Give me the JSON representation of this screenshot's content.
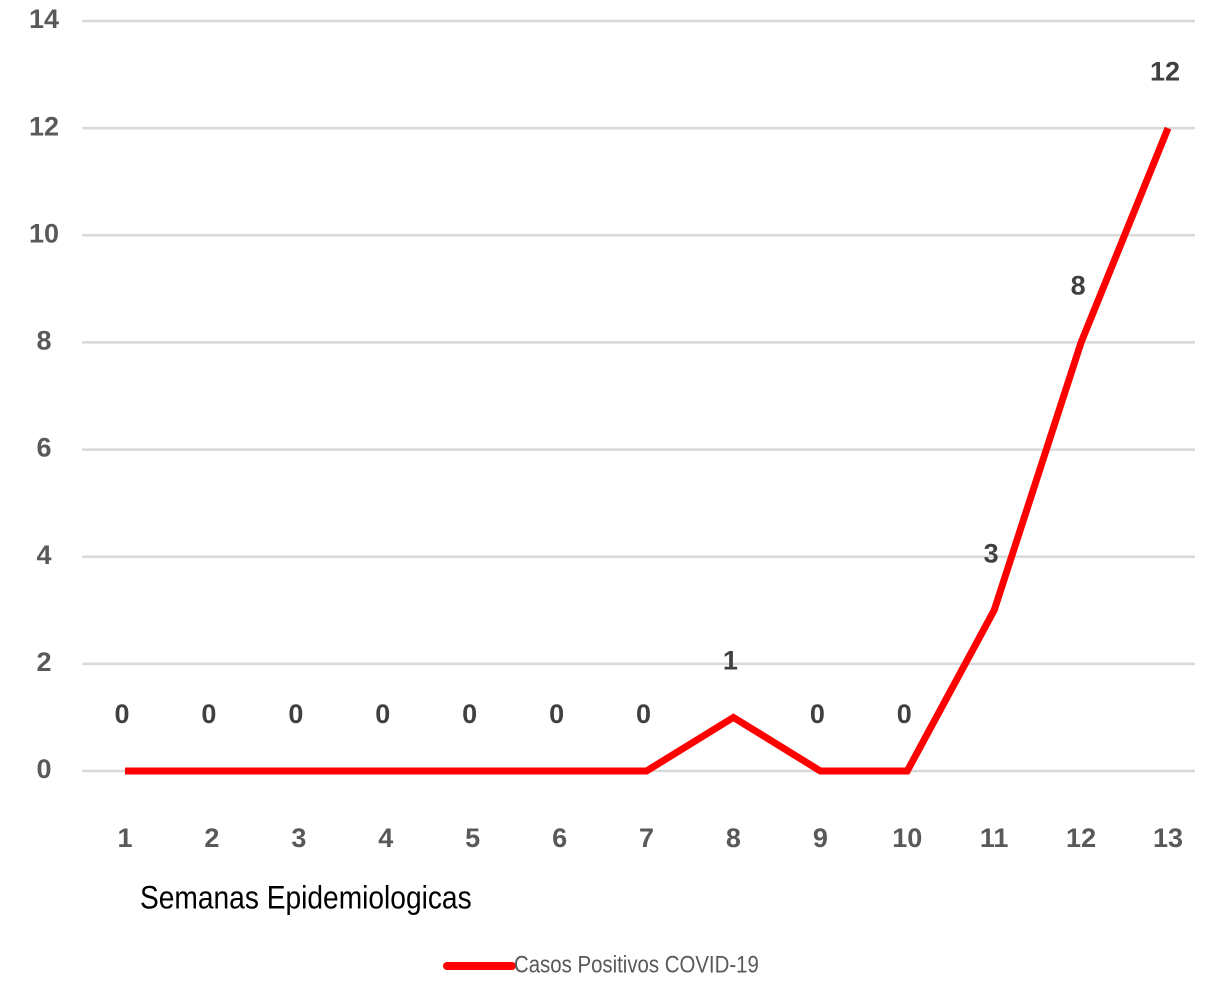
{
  "chart_data": {
    "type": "line",
    "categories": [
      "1",
      "2",
      "3",
      "4",
      "5",
      "6",
      "7",
      "8",
      "9",
      "10",
      "11",
      "12",
      "13"
    ],
    "series": [
      {
        "name": "Casos Positivos COVID-19",
        "color": "#ff0000",
        "values": [
          0,
          0,
          0,
          0,
          0,
          0,
          0,
          1,
          0,
          0,
          3,
          8,
          12
        ]
      }
    ],
    "ylim": [
      0,
      14
    ],
    "yticks": [
      0,
      2,
      4,
      6,
      8,
      10,
      12,
      14
    ],
    "grid": true,
    "x_label": "Semanas Epidemiologicas",
    "legend": "bottom"
  }
}
